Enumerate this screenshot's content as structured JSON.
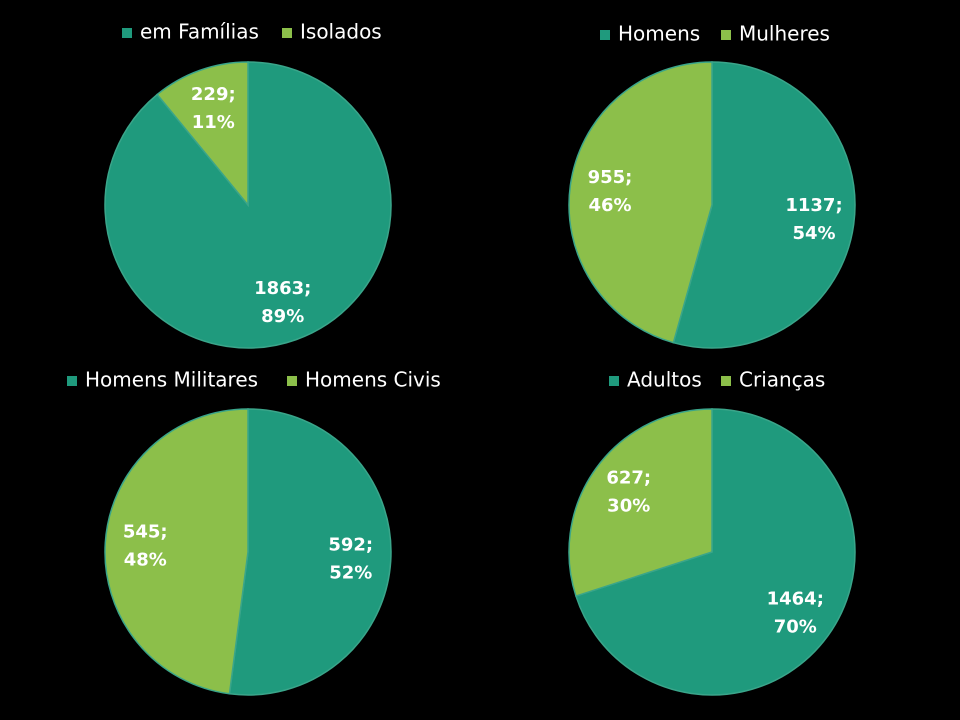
{
  "chart_data": [
    {
      "type": "pie",
      "categories": [
        "em Famílias",
        "Isolados"
      ],
      "values": [
        1863,
        229
      ],
      "value_labels": [
        [
          "1863;",
          "89%"
        ],
        [
          "229;",
          "11%"
        ]
      ],
      "colors": [
        "#1f9a7d",
        "#8cbf4a"
      ],
      "legend": "top"
    },
    {
      "type": "pie",
      "categories": [
        "Homens",
        "Mulheres"
      ],
      "values": [
        1137,
        955
      ],
      "value_labels": [
        [
          "1137;",
          "54%"
        ],
        [
          "955;",
          "46%"
        ]
      ],
      "colors": [
        "#1f9a7d",
        "#8cbf4a"
      ],
      "legend": "top"
    },
    {
      "type": "pie",
      "categories": [
        "Homens Militares",
        "Homens Civis"
      ],
      "values": [
        592,
        545
      ],
      "value_labels": [
        [
          "592;",
          "52%"
        ],
        [
          "545;",
          "48%"
        ]
      ],
      "colors": [
        "#1f9a7d",
        "#8cbf4a"
      ],
      "legend": "top"
    },
    {
      "type": "pie",
      "categories": [
        "Adultos",
        "Crianças"
      ],
      "values": [
        1464,
        627
      ],
      "value_labels": [
        [
          "1464;",
          "70%"
        ],
        [
          "627;",
          "30%"
        ]
      ],
      "colors": [
        "#1f9a7d",
        "#8cbf4a"
      ],
      "legend": "top"
    }
  ]
}
